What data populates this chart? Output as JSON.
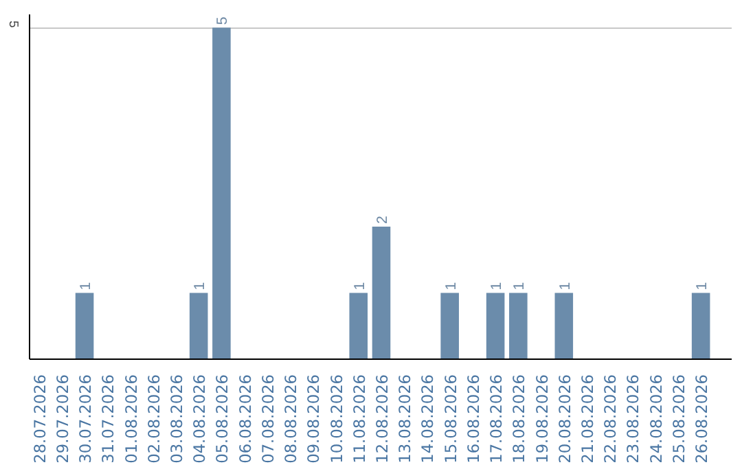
{
  "chart_data": {
    "type": "bar",
    "categories": [
      "28.07.2026",
      "29.07.2026",
      "30.07.2026",
      "31.07.2026",
      "01.08.2026",
      "02.08.2026",
      "03.08.2026",
      "04.08.2026",
      "05.08.2026",
      "06.08.2026",
      "07.08.2026",
      "08.08.2026",
      "09.08.2026",
      "10.08.2026",
      "11.08.2026",
      "12.08.2026",
      "13.08.2026",
      "14.08.2026",
      "15.08.2026",
      "16.08.2026",
      "17.08.2026",
      "18.08.2026",
      "19.08.2026",
      "20.08.2026",
      "21.08.2026",
      "22.08.2026",
      "23.08.2026",
      "24.08.2026",
      "25.08.2026",
      "26.08.2026"
    ],
    "values": [
      0,
      0,
      1,
      0,
      0,
      0,
      0,
      1,
      5,
      0,
      0,
      0,
      0,
      0,
      1,
      2,
      0,
      0,
      1,
      0,
      1,
      1,
      0,
      1,
      0,
      0,
      0,
      0,
      0,
      1
    ],
    "value_labels": [
      null,
      null,
      "1",
      null,
      null,
      null,
      null,
      "1",
      "5",
      null,
      null,
      null,
      null,
      null,
      "1",
      "2",
      null,
      null,
      "1",
      null,
      "1",
      "1",
      null,
      "1",
      null,
      null,
      null,
      null,
      null,
      "1"
    ],
    "color": "#6b8cab",
    "ylim": [
      0,
      5.2
    ],
    "yticks": [
      5
    ],
    "grid": "y"
  }
}
